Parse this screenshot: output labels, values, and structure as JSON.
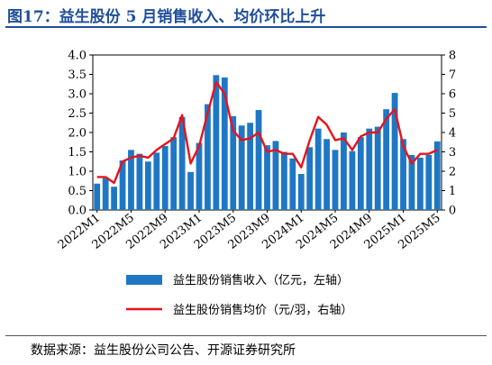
{
  "header": {
    "title": "图17：益生股份 5 月销售收入、均价环比上升"
  },
  "source": "数据来源：益生股份公司公告、开源证券研究所",
  "colors": {
    "bar": "#1f77c4",
    "line": "#e8131b",
    "title": "#1f4e9c"
  },
  "chart_data": {
    "type": "bar",
    "categories": [
      "2022M1",
      "2022M2",
      "2022M3",
      "2022M4",
      "2022M5",
      "2022M6",
      "2022M7",
      "2022M8",
      "2022M9",
      "2022M10",
      "2022M11",
      "2022M12",
      "2023M1",
      "2023M2",
      "2023M3",
      "2023M4",
      "2023M5",
      "2023M6",
      "2023M7",
      "2023M8",
      "2023M9",
      "2023M10",
      "2023M11",
      "2023M12",
      "2024M1",
      "2024M2",
      "2024M3",
      "2024M4",
      "2024M5",
      "2024M6",
      "2024M7",
      "2024M8",
      "2024M9",
      "2024M10",
      "2024M11",
      "2024M12",
      "2025M1",
      "2025M2",
      "2025M3",
      "2025M4",
      "2025M5"
    ],
    "tick_labels": [
      "2022M1",
      "2022M5",
      "2022M9",
      "2023M1",
      "2023M5",
      "2023M9",
      "2024M1",
      "2024M5",
      "2024M9",
      "2025M1",
      "2025M5"
    ],
    "series": [
      {
        "name": "益生股份销售收入（亿元，左轴）",
        "type": "bar",
        "axis": "left",
        "values": [
          0.68,
          0.82,
          0.6,
          1.28,
          1.55,
          1.45,
          1.25,
          1.48,
          1.65,
          1.88,
          2.4,
          0.98,
          1.73,
          2.73,
          3.48,
          3.42,
          2.42,
          2.18,
          2.25,
          2.58,
          1.67,
          1.78,
          1.5,
          1.33,
          0.93,
          1.62,
          2.1,
          1.83,
          1.55,
          2.0,
          1.52,
          1.88,
          2.1,
          2.15,
          2.6,
          3.02,
          1.83,
          1.42,
          1.35,
          1.42,
          1.77
        ]
      },
      {
        "name": "益生股份销售均价（元/羽，右轴）",
        "type": "line",
        "axis": "right",
        "values": [
          1.7,
          1.7,
          1.4,
          2.5,
          2.7,
          2.8,
          2.7,
          3.1,
          3.4,
          3.7,
          4.9,
          2.4,
          3.3,
          5.0,
          6.6,
          6.0,
          4.1,
          3.6,
          3.7,
          4.0,
          3.0,
          3.1,
          2.9,
          2.9,
          2.2,
          3.6,
          4.8,
          4.4,
          3.6,
          3.7,
          3.1,
          3.8,
          4.0,
          4.0,
          4.7,
          5.2,
          3.3,
          2.4,
          2.9,
          2.9,
          3.1
        ]
      }
    ],
    "ylim_left": [
      0,
      4.0
    ],
    "yticks_left": [
      "0.0",
      "0.5",
      "1.0",
      "1.5",
      "2.0",
      "2.5",
      "3.0",
      "3.5",
      "4.0"
    ],
    "ylim_right": [
      0,
      8
    ],
    "yticks_right": [
      "0",
      "1",
      "2",
      "3",
      "4",
      "5",
      "6",
      "7",
      "8"
    ],
    "legend_position": "bottom",
    "grid": false
  }
}
